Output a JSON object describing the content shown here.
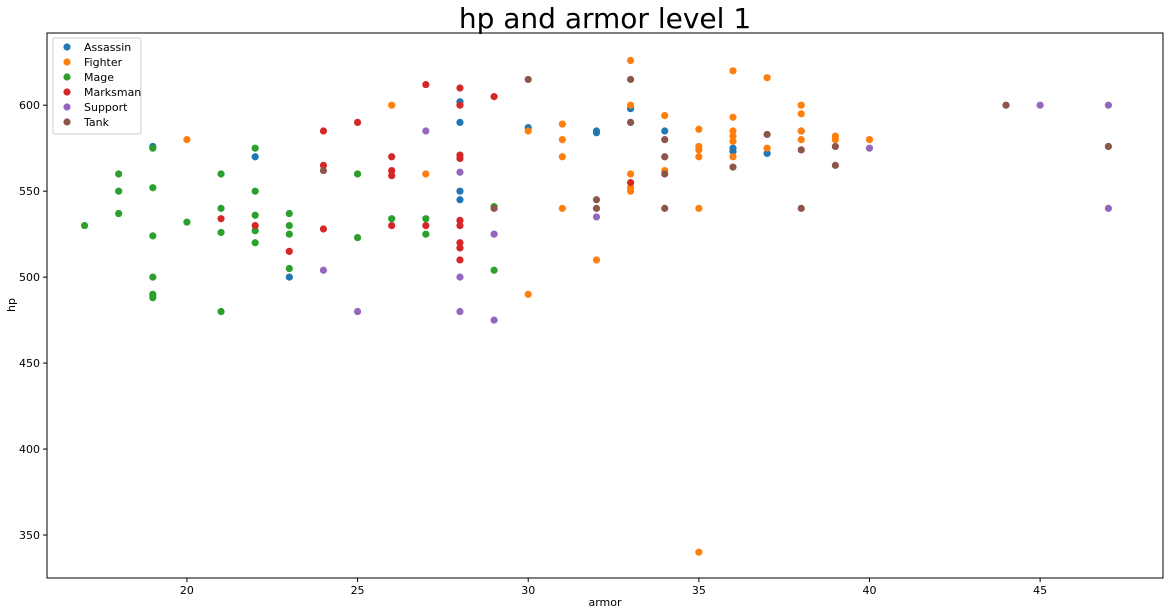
{
  "chart_data": {
    "type": "scatter",
    "title": "hp and armor level 1",
    "xlabel": "armor",
    "ylabel": "hp",
    "xlim": [
      15.9,
      48.6
    ],
    "ylim": [
      325,
      642
    ],
    "xticks": [
      20,
      25,
      30,
      35,
      40,
      45
    ],
    "yticks": [
      350,
      400,
      450,
      500,
      550,
      600
    ],
    "grid": false,
    "legend": "top-left",
    "series": [
      {
        "name": "Assassin",
        "color": "#1f77b4",
        "points": [
          [
            19,
            576
          ],
          [
            22,
            570
          ],
          [
            23,
            500
          ],
          [
            28,
            602
          ],
          [
            28,
            590
          ],
          [
            28,
            550
          ],
          [
            28,
            545
          ],
          [
            30,
            587
          ],
          [
            32,
            585
          ],
          [
            32,
            584
          ],
          [
            33,
            598
          ],
          [
            34,
            585
          ],
          [
            36,
            575
          ],
          [
            36,
            573
          ],
          [
            37,
            572
          ],
          [
            38,
            585
          ]
        ]
      },
      {
        "name": "Fighter",
        "color": "#ff7f0e",
        "points": [
          [
            20,
            580
          ],
          [
            26,
            600
          ],
          [
            27,
            560
          ],
          [
            30,
            585
          ],
          [
            30,
            490
          ],
          [
            31,
            589
          ],
          [
            31,
            580
          ],
          [
            31,
            570
          ],
          [
            31,
            540
          ],
          [
            32,
            510
          ],
          [
            33,
            626
          ],
          [
            33,
            600
          ],
          [
            33,
            560
          ],
          [
            33,
            552
          ],
          [
            33,
            550
          ],
          [
            34,
            594
          ],
          [
            34,
            562
          ],
          [
            35,
            586
          ],
          [
            35,
            576
          ],
          [
            35,
            574
          ],
          [
            35,
            570
          ],
          [
            35,
            540
          ],
          [
            35,
            340
          ],
          [
            36,
            620
          ],
          [
            36,
            593
          ],
          [
            36,
            585
          ],
          [
            36,
            582
          ],
          [
            36,
            579
          ],
          [
            36,
            570
          ],
          [
            37,
            616
          ],
          [
            37,
            575
          ],
          [
            38,
            600
          ],
          [
            38,
            595
          ],
          [
            38,
            585
          ],
          [
            38,
            580
          ],
          [
            39,
            582
          ],
          [
            39,
            580
          ],
          [
            40,
            580
          ]
        ]
      },
      {
        "name": "Mage",
        "color": "#2ca02c",
        "points": [
          [
            17,
            530
          ],
          [
            18,
            560
          ],
          [
            18,
            550
          ],
          [
            18,
            537
          ],
          [
            19,
            575
          ],
          [
            19,
            552
          ],
          [
            19,
            524
          ],
          [
            19,
            500
          ],
          [
            19,
            490
          ],
          [
            19,
            488
          ],
          [
            20,
            532
          ],
          [
            21,
            560
          ],
          [
            21,
            540
          ],
          [
            21,
            526
          ],
          [
            21,
            480
          ],
          [
            22,
            575
          ],
          [
            22,
            550
          ],
          [
            22,
            536
          ],
          [
            22,
            527
          ],
          [
            22,
            520
          ],
          [
            23,
            537
          ],
          [
            23,
            530
          ],
          [
            23,
            525
          ],
          [
            23,
            505
          ],
          [
            25,
            560
          ],
          [
            25,
            523
          ],
          [
            26,
            534
          ],
          [
            27,
            534
          ],
          [
            27,
            525
          ],
          [
            29,
            541
          ],
          [
            29,
            504
          ]
        ]
      },
      {
        "name": "Marksman",
        "color": "#d62728",
        "points": [
          [
            21,
            534
          ],
          [
            22,
            530
          ],
          [
            23,
            515
          ],
          [
            24,
            585
          ],
          [
            24,
            565
          ],
          [
            24,
            528
          ],
          [
            25,
            590
          ],
          [
            26,
            570
          ],
          [
            26,
            562
          ],
          [
            26,
            559
          ],
          [
            26,
            530
          ],
          [
            27,
            612
          ],
          [
            27,
            530
          ],
          [
            28,
            610
          ],
          [
            28,
            600
          ],
          [
            28,
            571
          ],
          [
            28,
            569
          ],
          [
            28,
            533
          ],
          [
            28,
            530
          ],
          [
            28,
            520
          ],
          [
            28,
            517
          ],
          [
            28,
            510
          ],
          [
            29,
            605
          ],
          [
            33,
            555
          ]
        ]
      },
      {
        "name": "Support",
        "color": "#9467bd",
        "points": [
          [
            24,
            504
          ],
          [
            25,
            480
          ],
          [
            27,
            585
          ],
          [
            28,
            561
          ],
          [
            28,
            500
          ],
          [
            28,
            480
          ],
          [
            29,
            525
          ],
          [
            29,
            475
          ],
          [
            32,
            535
          ],
          [
            40,
            575
          ],
          [
            45,
            600
          ],
          [
            47,
            600
          ],
          [
            47,
            540
          ]
        ]
      },
      {
        "name": "Tank",
        "color": "#8c564b",
        "points": [
          [
            24,
            562
          ],
          [
            29,
            540
          ],
          [
            30,
            615
          ],
          [
            32,
            545
          ],
          [
            32,
            540
          ],
          [
            33,
            615
          ],
          [
            33,
            590
          ],
          [
            34,
            580
          ],
          [
            34,
            570
          ],
          [
            34,
            560
          ],
          [
            34,
            540
          ],
          [
            36,
            564
          ],
          [
            37,
            583
          ],
          [
            38,
            574
          ],
          [
            38,
            540
          ],
          [
            39,
            576
          ],
          [
            39,
            565
          ],
          [
            44,
            600
          ],
          [
            47,
            576
          ]
        ]
      }
    ]
  }
}
